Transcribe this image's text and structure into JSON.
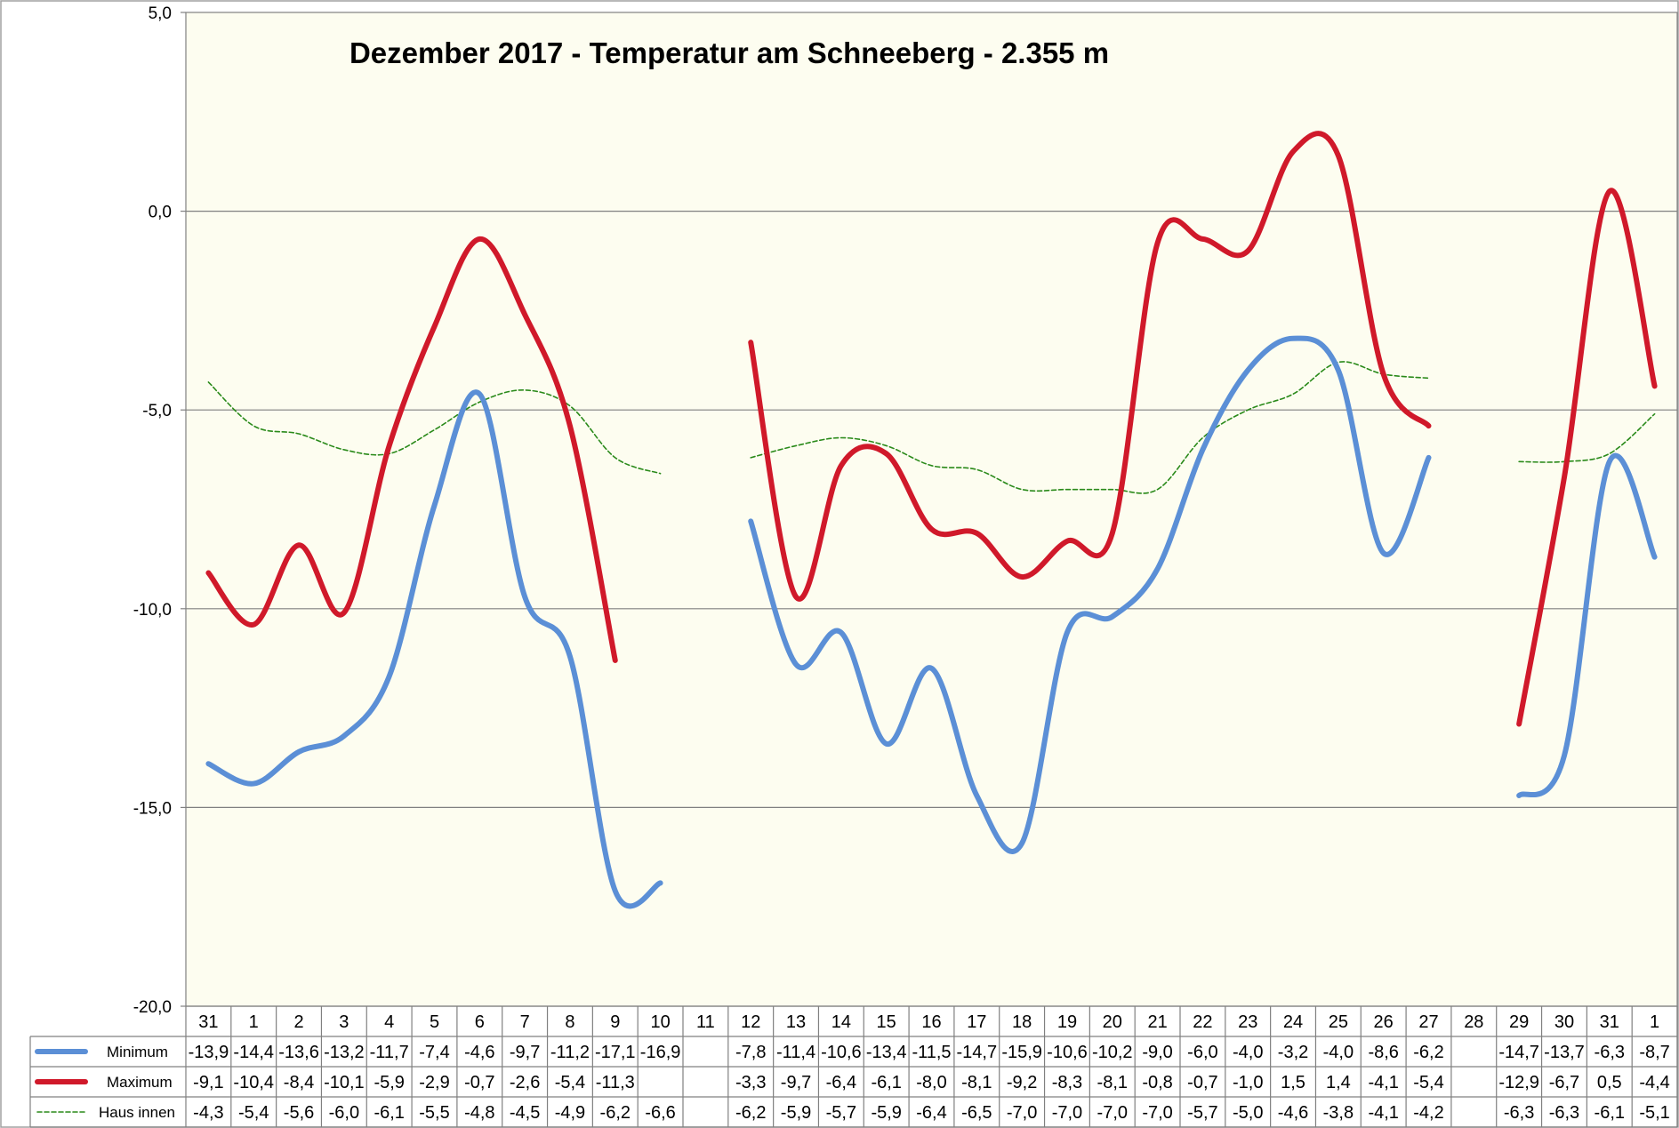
{
  "chart_data": {
    "type": "line",
    "title": "Dezember 2017 - Temperatur am Schneeberg - 2.355 m",
    "ylim": [
      -20,
      5
    ],
    "yticks": [
      "5,0",
      "0,0",
      "-5,0",
      "-10,0",
      "-15,0",
      "-20,0"
    ],
    "ytick_values": [
      5,
      0,
      -5,
      -10,
      -15,
      -20
    ],
    "grid": true,
    "legend": "table-left",
    "categories": [
      "31",
      "1",
      "2",
      "3",
      "4",
      "5",
      "6",
      "7",
      "8",
      "9",
      "10",
      "11",
      "12",
      "13",
      "14",
      "15",
      "16",
      "17",
      "18",
      "19",
      "20",
      "21",
      "22",
      "23",
      "24",
      "25",
      "26",
      "27",
      "28",
      "29",
      "30",
      "31",
      "1"
    ],
    "series": [
      {
        "name": "Minimum",
        "color": "#5b8fd6",
        "style": "thick",
        "values": [
          -13.9,
          -14.4,
          -13.6,
          -13.2,
          -11.7,
          -7.4,
          -4.6,
          -9.7,
          -11.2,
          -17.1,
          -16.9,
          null,
          -7.8,
          -11.4,
          -10.6,
          -13.4,
          -11.5,
          -14.7,
          -15.9,
          -10.6,
          -10.2,
          -9.0,
          -6.0,
          -4.0,
          -3.2,
          -4.0,
          -8.6,
          -6.2,
          null,
          -14.7,
          -13.7,
          -6.3,
          -8.7
        ],
        "labels": [
          "-13,9",
          "-14,4",
          "-13,6",
          "-13,2",
          "-11,7",
          "-7,4",
          "-4,6",
          "-9,7",
          "-11,2",
          "-17,1",
          "-16,9",
          "",
          "-7,8",
          "-11,4",
          "-10,6",
          "-13,4",
          "-11,5",
          "-14,7",
          "-15,9",
          "-10,6",
          "-10,2",
          "-9,0",
          "-6,0",
          "-4,0",
          "-3,2",
          "-4,0",
          "-8,6",
          "-6,2",
          "",
          "-14,7",
          "-13,7",
          "-6,3",
          "-8,7"
        ]
      },
      {
        "name": "Maximum",
        "color": "#d0192a",
        "style": "thick",
        "values": [
          -9.1,
          -10.4,
          -8.4,
          -10.1,
          -5.9,
          -2.9,
          -0.7,
          -2.6,
          -5.4,
          -11.3,
          null,
          null,
          -3.3,
          -9.7,
          -6.4,
          -6.1,
          -8.0,
          -8.1,
          -9.2,
          -8.3,
          -8.1,
          -0.8,
          -0.7,
          -1.0,
          1.5,
          1.4,
          -4.1,
          -5.4,
          null,
          -12.9,
          -6.7,
          0.5,
          -4.4
        ],
        "labels": [
          "-9,1",
          "-10,4",
          "-8,4",
          "-10,1",
          "-5,9",
          "-2,9",
          "-0,7",
          "-2,6",
          "-5,4",
          "-11,3",
          "",
          "",
          "-3,3",
          "-9,7",
          "-6,4",
          "-6,1",
          "-8,0",
          "-8,1",
          "-9,2",
          "-8,3",
          "-8,1",
          "-0,8",
          "-0,7",
          "-1,0",
          "1,5",
          "1,4",
          "-4,1",
          "-5,4",
          "",
          "-12,9",
          "-6,7",
          "0,5",
          "-4,4"
        ]
      },
      {
        "name": "Haus innen",
        "color": "#2a8a1a",
        "style": "dashed",
        "values": [
          -4.3,
          -5.4,
          -5.6,
          -6.0,
          -6.1,
          -5.5,
          -4.8,
          -4.5,
          -4.9,
          -6.2,
          -6.6,
          null,
          -6.2,
          -5.9,
          -5.7,
          -5.9,
          -6.4,
          -6.5,
          -7.0,
          -7.0,
          -7.0,
          -7.0,
          -5.7,
          -5.0,
          -4.6,
          -3.8,
          -4.1,
          -4.2,
          null,
          -6.3,
          -6.3,
          -6.1,
          -5.1
        ],
        "labels": [
          "-4,3",
          "-5,4",
          "-5,6",
          "-6,0",
          "-6,1",
          "-5,5",
          "-4,8",
          "-4,5",
          "-4,9",
          "-6,2",
          "-6,6",
          "",
          "-6,2",
          "-5,9",
          "-5,7",
          "-5,9",
          "-6,4",
          "-6,5",
          "-7,0",
          "-7,0",
          "-7,0",
          "-7,0",
          "-5,7",
          "-5,0",
          "-4,6",
          "-3,8",
          "-4,1",
          "-4,2",
          "",
          "-6,3",
          "-6,3",
          "-6,1",
          "-5,1"
        ]
      }
    ]
  },
  "colors": {
    "plot_background": "#fdfdf0",
    "grid": "#808080",
    "border": "#808080"
  }
}
